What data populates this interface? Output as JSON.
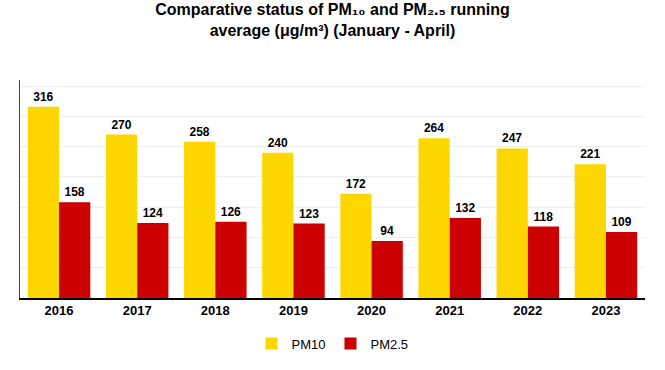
{
  "chart_data": {
    "type": "bar",
    "title": "Comparative status of PM₁₀ and PM₂.₅ running\naverage (μg/m³) (January - April)",
    "categories": [
      "2016",
      "2017",
      "2018",
      "2019",
      "2020",
      "2021",
      "2022",
      "2023"
    ],
    "series": [
      {
        "name": "PM10",
        "color": "#FFD700",
        "values": [
          316,
          270,
          258,
          240,
          172,
          264,
          247,
          221
        ]
      },
      {
        "name": "PM2.5",
        "color": "#CC0000",
        "values": [
          158,
          124,
          126,
          123,
          94,
          132,
          118,
          109
        ]
      }
    ],
    "ylim": [
      0,
      360
    ],
    "yticks": [
      0,
      50,
      100,
      150,
      200,
      250,
      300,
      350
    ],
    "grid": true,
    "data_labels": true,
    "tick_labels": "x",
    "legend": "bottom"
  }
}
